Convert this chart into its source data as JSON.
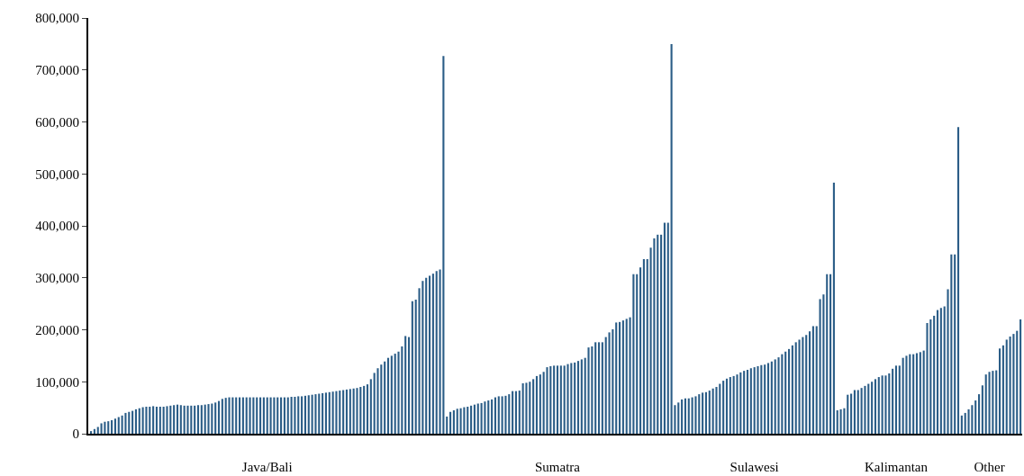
{
  "chart_data": {
    "type": "bar",
    "categories": [
      null,
      null,
      null,
      null,
      null,
      null,
      null,
      null,
      null,
      null,
      null,
      null,
      null,
      null,
      null,
      null,
      null,
      null,
      null,
      null,
      null,
      null,
      null,
      null,
      null,
      null,
      null,
      null,
      null,
      null,
      null,
      null,
      null,
      null,
      null,
      null,
      null,
      null,
      null,
      null,
      null,
      null,
      null,
      null,
      null,
      null,
      null,
      null,
      null,
      null,
      null,
      "Java/Bali",
      null,
      null,
      null,
      null,
      null,
      null,
      null,
      null,
      null,
      null,
      null,
      null,
      null,
      null,
      null,
      null,
      null,
      null,
      null,
      null,
      null,
      null,
      null,
      null,
      null,
      null,
      null,
      null,
      null,
      null,
      null,
      null,
      null,
      null,
      null,
      null,
      null,
      null,
      null,
      null,
      null,
      null,
      null,
      null,
      null,
      null,
      null,
      null,
      null,
      null,
      null,
      null,
      null,
      null,
      null,
      null,
      null,
      null,
      null,
      null,
      null,
      null,
      null,
      null,
      null,
      null,
      null,
      null,
      null,
      null,
      null,
      null,
      null,
      null,
      null,
      null,
      null,
      null,
      null,
      null,
      null,
      null,
      null,
      "Sumatra",
      null,
      null,
      null,
      null,
      null,
      null,
      null,
      null,
      null,
      null,
      null,
      null,
      null,
      null,
      null,
      null,
      null,
      null,
      null,
      null,
      null,
      null,
      null,
      null,
      null,
      null,
      null,
      null,
      null,
      null,
      null,
      null,
      null,
      null,
      null,
      null,
      null,
      null,
      null,
      null,
      null,
      null,
      null,
      null,
      null,
      null,
      null,
      null,
      null,
      null,
      null,
      null,
      null,
      null,
      null,
      null,
      "Sulawesi",
      null,
      null,
      null,
      null,
      null,
      null,
      null,
      null,
      null,
      null,
      null,
      null,
      null,
      null,
      null,
      null,
      null,
      null,
      null,
      null,
      null,
      null,
      null,
      null,
      null,
      null,
      null,
      null,
      null,
      null,
      null,
      null,
      null,
      null,
      null,
      null,
      null,
      null,
      null,
      null,
      "Kalimantan",
      null,
      null,
      null,
      null,
      null,
      null,
      null,
      null,
      null,
      null,
      null,
      null,
      null,
      null,
      null,
      null,
      null,
      null,
      null,
      null,
      null,
      null,
      null,
      null,
      null,
      null,
      "Other",
      null,
      null,
      null,
      null,
      null,
      null,
      null,
      null,
      null
    ],
    "values": [
      5000,
      9000,
      13000,
      20000,
      23000,
      24000,
      26000,
      29000,
      32000,
      35000,
      40000,
      42000,
      44000,
      47000,
      49000,
      51000,
      52000,
      52000,
      53000,
      52000,
      52000,
      52000,
      53000,
      54000,
      55000,
      56000,
      55000,
      54000,
      54000,
      54000,
      54000,
      55000,
      55000,
      56000,
      57000,
      58000,
      60000,
      63000,
      67000,
      69000,
      70000,
      70000,
      70000,
      70000,
      70000,
      70000,
      70000,
      70000,
      70000,
      70000,
      70000,
      70000,
      70000,
      70000,
      70000,
      70000,
      70000,
      70000,
      71000,
      71000,
      72000,
      72000,
      73000,
      74000,
      75000,
      76000,
      77000,
      78000,
      79000,
      80000,
      81000,
      82000,
      83000,
      84000,
      85000,
      86000,
      87000,
      88000,
      90000,
      92000,
      95000,
      105000,
      117000,
      126000,
      133000,
      139000,
      146000,
      150000,
      154000,
      158000,
      168000,
      188000,
      186000,
      255000,
      258000,
      280000,
      294000,
      300000,
      304000,
      308000,
      313000,
      316000,
      727000,
      33000,
      42000,
      45000,
      48000,
      49000,
      51000,
      52000,
      54000,
      56000,
      58000,
      59000,
      62000,
      64000,
      66000,
      70000,
      72000,
      72000,
      73000,
      76000,
      82000,
      82000,
      83000,
      97000,
      98000,
      100000,
      105000,
      111000,
      114000,
      119000,
      128000,
      130000,
      131000,
      131000,
      131000,
      131000,
      134000,
      136000,
      137000,
      140000,
      143000,
      146000,
      166000,
      168000,
      176000,
      176000,
      176000,
      186000,
      195000,
      201000,
      214000,
      215000,
      218000,
      221000,
      224000,
      307000,
      307000,
      320000,
      336000,
      336000,
      358000,
      376000,
      383000,
      383000,
      406000,
      406000,
      750000,
      55000,
      60000,
      66000,
      68000,
      68000,
      70000,
      72000,
      76000,
      79000,
      80000,
      83000,
      87000,
      90000,
      96000,
      102000,
      106000,
      109000,
      111000,
      114000,
      118000,
      121000,
      123000,
      126000,
      128000,
      130000,
      132000,
      133000,
      136000,
      139000,
      143000,
      147000,
      153000,
      158000,
      163000,
      170000,
      176000,
      181000,
      186000,
      190000,
      197000,
      207000,
      207000,
      259000,
      268000,
      307000,
      307000,
      483000,
      45000,
      47000,
      49000,
      75000,
      77000,
      84000,
      84000,
      88000,
      92000,
      96000,
      100000,
      105000,
      109000,
      112000,
      112000,
      116000,
      125000,
      131000,
      131000,
      146000,
      150000,
      153000,
      153000,
      155000,
      157000,
      160000,
      213000,
      220000,
      227000,
      238000,
      242000,
      245000,
      278000,
      345000,
      345000,
      590000,
      35000,
      40000,
      47000,
      55000,
      64000,
      76000,
      93000,
      114000,
      119000,
      121000,
      122000,
      164000,
      170000,
      181000,
      187000,
      192000,
      198000,
      220000
    ],
    "color": "#2b5d87",
    "ylim": [
      0,
      800000
    ],
    "yticks": [
      {
        "value": 0,
        "label": "0"
      },
      {
        "value": 100000,
        "label": "100,000"
      },
      {
        "value": 200000,
        "label": "200,000"
      },
      {
        "value": 300000,
        "label": "300,000"
      },
      {
        "value": 400000,
        "label": "400,000"
      },
      {
        "value": 500000,
        "label": "500,000"
      },
      {
        "value": 600000,
        "label": "600,000"
      },
      {
        "value": 700000,
        "label": "700,000"
      },
      {
        "value": 800000,
        "label": "800,000"
      }
    ]
  }
}
